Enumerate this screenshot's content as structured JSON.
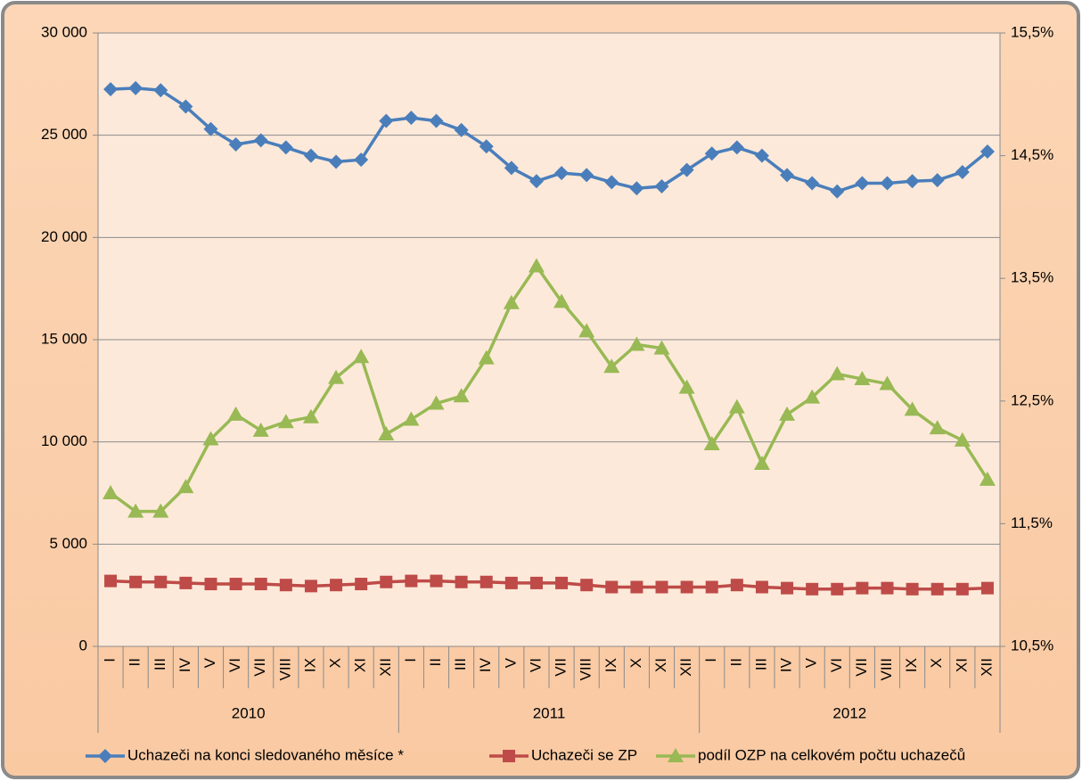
{
  "chart_data": {
    "type": "line",
    "categories": [
      "I",
      "II",
      "III",
      "IV",
      "V",
      "VI",
      "VII",
      "VIII",
      "IX",
      "X",
      "XI",
      "XII",
      "I",
      "II",
      "III",
      "IV",
      "V",
      "VI",
      "VII",
      "VIII",
      "IX",
      "X",
      "XI",
      "XII",
      "I",
      "II",
      "III",
      "IV",
      "V",
      "VI",
      "VII",
      "VIII",
      "IX",
      "X",
      "XI",
      "XII"
    ],
    "category_groups": [
      "2010",
      "2011",
      "2012"
    ],
    "ylim": [
      0,
      30000
    ],
    "yticks": [
      0,
      {
        "value": 5000,
        "label": "5 000"
      },
      {
        "value": 10000,
        "label": "10 000"
      },
      {
        "value": 15000,
        "label": "15 000"
      },
      {
        "value": 20000,
        "label": "20 000"
      },
      {
        "value": 25000,
        "label": "25 000"
      },
      {
        "value": 30000,
        "label": "30 000"
      }
    ],
    "y2lim": [
      10.5,
      15.5
    ],
    "y2ticks": [
      {
        "value": 10.5,
        "label": "10,5%"
      },
      {
        "value": 11.5,
        "label": "11,5%"
      },
      {
        "value": 12.5,
        "label": "12,5%"
      },
      {
        "value": 13.5,
        "label": "13,5%"
      },
      {
        "value": 14.5,
        "label": "14,5%"
      },
      {
        "value": 15.5,
        "label": "15,5%"
      }
    ],
    "grid": true,
    "legend": "bottom",
    "series": [
      {
        "name": "Uchazeči na konci sledovaného měsíce *",
        "color": "#4a7ebb",
        "marker": "diamond",
        "values": [
          27250,
          27300,
          27200,
          26400,
          25300,
          24550,
          24750,
          24400,
          24000,
          23700,
          23800,
          25700,
          25850,
          25700,
          25250,
          24450,
          23400,
          22750,
          23150,
          23050,
          22700,
          22400,
          22500,
          23300,
          24100,
          24400,
          24000,
          23050,
          22650,
          22250,
          22650,
          22650,
          22750,
          22800,
          23200,
          24200
        ]
      },
      {
        "name": "Uchazeči se ZP",
        "color": "#be4b48",
        "marker": "square",
        "values": [
          3200,
          3150,
          3150,
          3100,
          3050,
          3050,
          3050,
          3000,
          2950,
          3000,
          3050,
          3150,
          3200,
          3200,
          3150,
          3150,
          3100,
          3100,
          3100,
          3000,
          2900,
          2900,
          2900,
          2900,
          2900,
          3000,
          2900,
          2850,
          2800,
          2800,
          2850,
          2850,
          2800,
          2800,
          2800,
          2850
        ]
      },
      {
        "name": "podíl OZP na celkovém počtu uchazečů",
        "color": "#98b954",
        "marker": "triangle",
        "axis": "y2",
        "values": [
          11.75,
          11.6,
          11.6,
          11.8,
          12.19,
          12.39,
          12.26,
          12.33,
          12.37,
          12.69,
          12.86,
          12.23,
          12.35,
          12.48,
          12.54,
          12.85,
          13.3,
          13.6,
          13.31,
          13.07,
          12.78,
          12.96,
          12.93,
          12.61,
          12.15,
          12.45,
          11.99,
          12.39,
          12.53,
          12.72,
          12.68,
          12.64,
          12.43,
          12.28,
          12.18,
          11.86
        ]
      }
    ]
  }
}
